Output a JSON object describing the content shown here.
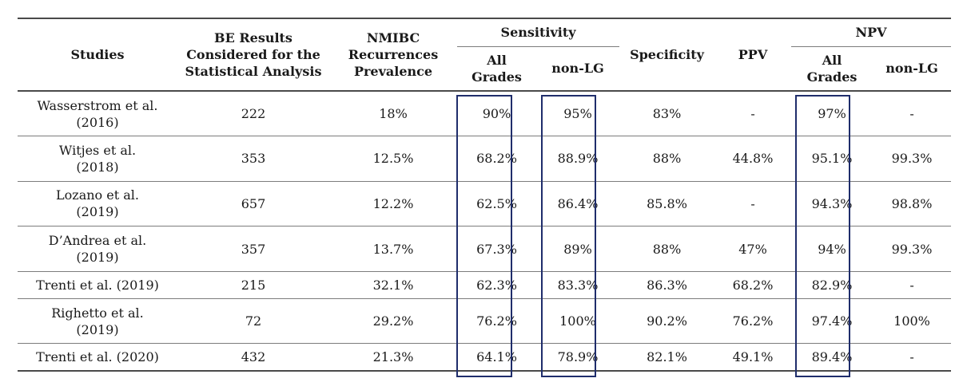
{
  "headers": {
    "studies": "Studies",
    "be_results": [
      "BE Results",
      "Considered for the",
      "Statistical Analysis"
    ],
    "nmibc": [
      "NMIBC",
      "Recurrences",
      "Prevalence"
    ],
    "sensitivity": "Sensitivity",
    "specificity": "Specificity",
    "ppv": "PPV",
    "npv": "NPV",
    "all_grades": [
      "All",
      "Grades"
    ],
    "non_lg": "non-LG"
  },
  "rows": [
    {
      "study": [
        "Wasserstrom et al.",
        "(2016)"
      ],
      "be": "222",
      "prev": "18%",
      "sens_all": "90%",
      "sens_nonlg": "95%",
      "spec": "83%",
      "ppv": "-",
      "npv_all": "97%",
      "npv_nonlg": "-"
    },
    {
      "study": [
        "Witjes et al.",
        "(2018)"
      ],
      "be": "353",
      "prev": "12.5%",
      "sens_all": "68.2%",
      "sens_nonlg": "88.9%",
      "spec": "88%",
      "ppv": "44.8%",
      "npv_all": "95.1%",
      "npv_nonlg": "99.3%"
    },
    {
      "study": [
        "Lozano et al.",
        "(2019)"
      ],
      "be": "657",
      "prev": "12.2%",
      "sens_all": "62.5%",
      "sens_nonlg": "86.4%",
      "spec": "85.8%",
      "ppv": "-",
      "npv_all": "94.3%",
      "npv_nonlg": "98.8%"
    },
    {
      "study": [
        "D’Andrea et al.",
        "(2019)"
      ],
      "be": "357",
      "prev": "13.7%",
      "sens_all": "67.3%",
      "sens_nonlg": "89%",
      "spec": "88%",
      "ppv": "47%",
      "npv_all": "94%",
      "npv_nonlg": "99.3%"
    },
    {
      "study": [
        "Trenti et al. (2019)"
      ],
      "be": "215",
      "prev": "32.1%",
      "sens_all": "62.3%",
      "sens_nonlg": "83.3%",
      "spec": "86.3%",
      "ppv": "68.2%",
      "npv_all": "82.9%",
      "npv_nonlg": "-"
    },
    {
      "study": [
        "Righetto et al.",
        "(2019)"
      ],
      "be": "72",
      "prev": "29.2%",
      "sens_all": "76.2%",
      "sens_nonlg": "100%",
      "spec": "90.2%",
      "ppv": "76.2%",
      "npv_all": "97.4%",
      "npv_nonlg": "100%"
    },
    {
      "study": [
        "Trenti et al. (2020)"
      ],
      "be": "432",
      "prev": "21.3%",
      "sens_all": "64.1%",
      "sens_nonlg": "78.9%",
      "spec": "82.1%",
      "ppv": "49.1%",
      "npv_all": "89.4%",
      "npv_nonlg": "-"
    }
  ],
  "highlight_color": "#1f2d6b"
}
